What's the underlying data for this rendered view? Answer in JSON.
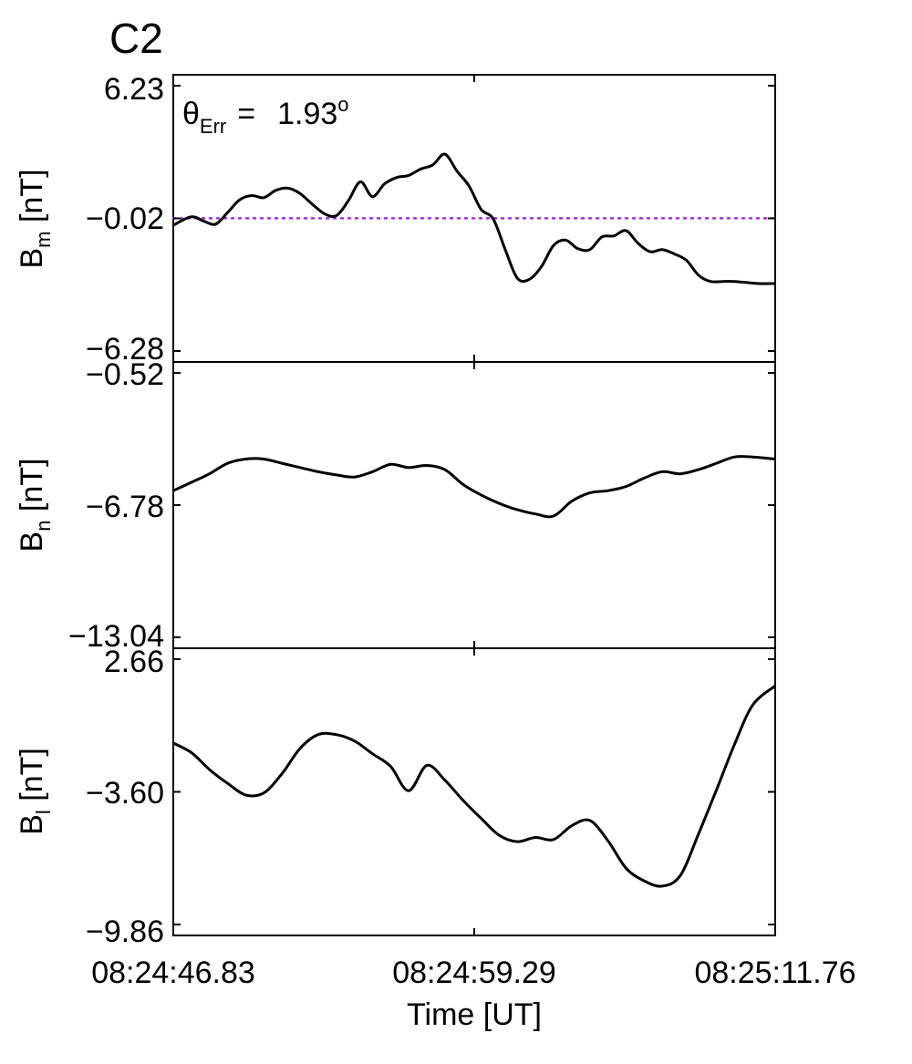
{
  "figure": {
    "panel_label": "C2",
    "panel_label_color": "#e8140c",
    "annotation": {
      "symbol": "θ",
      "sub": "Err",
      "eq": "=",
      "value": "1.93",
      "sup": "o"
    },
    "line_color": "#000000",
    "reference_line_color": "#9b30d9"
  },
  "chart_data": {
    "type": "line",
    "xlabel": "Time [UT]",
    "x_ticks": [
      "08:24:46.83",
      "08:24:59.29",
      "08:25:11.76"
    ],
    "x_range_seconds": [
      0,
      24.93
    ],
    "panels": [
      {
        "ylabel_main": "B",
        "ylabel_sub": "m",
        "ylabel_unit": " [nT]",
        "yticks": [
          "6.23",
          "−0.02",
          "−6.28"
        ],
        "ylim": [
          -6.28,
          6.23
        ],
        "reference_line": {
          "y": -0.02,
          "style": "dotted"
        },
        "series": [
          {
            "x": [
              0,
              0.75,
              1.25,
              1.75,
              2.25,
              2.75,
              3.25,
              3.75,
              4.25,
              4.75,
              5.25,
              5.75,
              6.25,
              6.75,
              7.25,
              7.75,
              8.25,
              8.75,
              9.25,
              9.75,
              10.25,
              10.75,
              11.25,
              11.75,
              12.25,
              12.75,
              13.25,
              13.75,
              14.25,
              14.75,
              15.25,
              15.75,
              16.25,
              16.75,
              17.25,
              17.75,
              18.25,
              18.75,
              19.25,
              19.75,
              20.25,
              20.75,
              21.25,
              21.75,
              22.25,
              22.75,
              23.25,
              23.75,
              24.25,
              24.93
            ],
            "y": [
              -0.35,
              0.05,
              -0.15,
              -0.3,
              0.25,
              0.85,
              1.05,
              0.95,
              1.3,
              1.4,
              1.15,
              0.65,
              0.2,
              0.1,
              0.8,
              1.7,
              1.0,
              1.6,
              1.9,
              2.0,
              2.3,
              2.5,
              3.0,
              2.2,
              1.5,
              0.4,
              -0.05,
              -1.5,
              -2.85,
              -2.9,
              -2.3,
              -1.3,
              -1.05,
              -1.45,
              -1.5,
              -0.9,
              -0.85,
              -0.6,
              -1.2,
              -1.6,
              -1.5,
              -1.7,
              -2.0,
              -2.7,
              -3.0,
              -3.0,
              -3.0,
              -3.05,
              -3.1,
              -3.1
            ]
          }
        ]
      },
      {
        "ylabel_main": "B",
        "ylabel_sub": "n",
        "ylabel_unit": " [nT]",
        "yticks": [
          "−0.52",
          "−6.78",
          "−13.04"
        ],
        "ylim": [
          -13.04,
          -0.52
        ],
        "series": [
          {
            "x": [
              0,
              0.75,
              1.5,
              2.25,
              3.0,
              3.75,
              4.5,
              5.25,
              6.0,
              6.75,
              7.5,
              8.25,
              9.0,
              9.75,
              10.5,
              11.25,
              12.0,
              12.75,
              13.5,
              14.25,
              15.0,
              15.75,
              16.5,
              17.25,
              18.0,
              18.75,
              19.5,
              20.25,
              21.0,
              21.75,
              22.5,
              23.25,
              24.0,
              24.93
            ],
            "y": [
              -6.1,
              -5.7,
              -5.3,
              -4.8,
              -4.6,
              -4.6,
              -4.8,
              -5.0,
              -5.2,
              -5.35,
              -5.45,
              -5.2,
              -4.85,
              -5.0,
              -4.9,
              -5.1,
              -5.8,
              -6.3,
              -6.7,
              -7.0,
              -7.2,
              -7.3,
              -6.6,
              -6.2,
              -6.1,
              -5.9,
              -5.5,
              -5.2,
              -5.3,
              -5.1,
              -4.8,
              -4.5,
              -4.5,
              -4.6
            ]
          }
        ]
      },
      {
        "ylabel_main": "B",
        "ylabel_sub": "l",
        "ylabel_unit": " [nT]",
        "yticks": [
          "2.66",
          "−3.60",
          "−9.86"
        ],
        "ylim": [
          -9.86,
          2.66
        ],
        "series": [
          {
            "x": [
              0,
              0.75,
              1.5,
              2.25,
              3.0,
              3.75,
              4.5,
              5.25,
              6.0,
              6.75,
              7.5,
              8.25,
              9.0,
              9.75,
              10.5,
              11.25,
              12.0,
              12.75,
              13.5,
              14.25,
              15.0,
              15.75,
              16.5,
              17.25,
              18.0,
              18.75,
              19.5,
              20.25,
              21.0,
              21.75,
              22.5,
              23.25,
              24.0,
              24.93
            ],
            "y": [
              -1.3,
              -1.75,
              -2.55,
              -3.2,
              -3.75,
              -3.65,
              -2.75,
              -1.55,
              -0.9,
              -0.9,
              -1.2,
              -1.8,
              -2.4,
              -3.55,
              -2.35,
              -3.05,
              -4.0,
              -4.85,
              -5.65,
              -5.95,
              -5.75,
              -5.85,
              -5.2,
              -4.95,
              -5.9,
              -7.2,
              -7.8,
              -8.05,
              -7.55,
              -5.6,
              -3.5,
              -1.35,
              0.5,
              1.4
            ]
          }
        ]
      }
    ]
  }
}
